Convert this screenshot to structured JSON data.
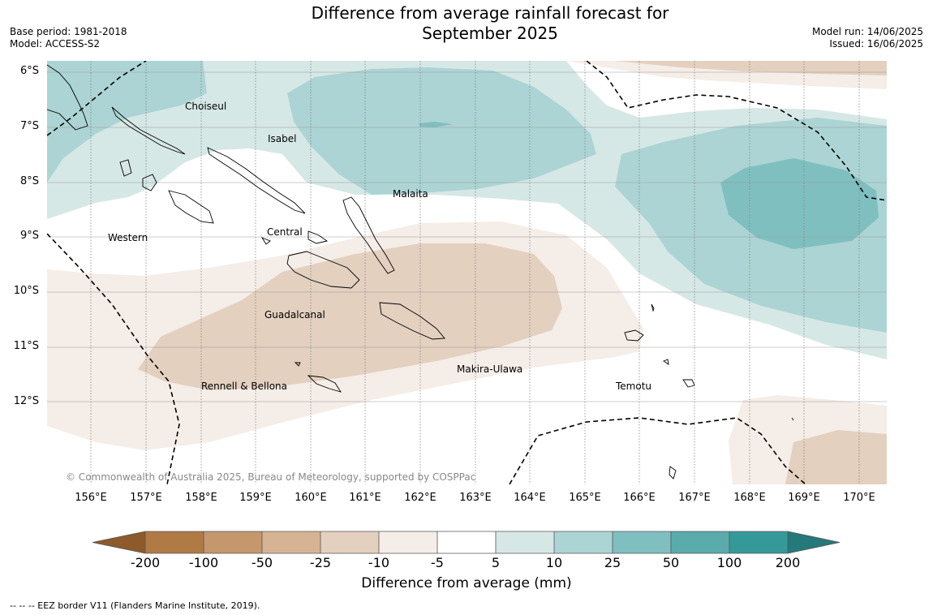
{
  "header": {
    "title_line1": "Difference from average rainfall forecast for",
    "title_line2": "September 2025",
    "base_period": "Base period: 1981-2018",
    "model": "Model: ACCESS-S2",
    "model_run": "Model run: 14/06/2025",
    "issued": "Issued: 16/06/2025"
  },
  "map": {
    "lat_labels": [
      "6°S",
      "7°S",
      "8°S",
      "9°S",
      "10°S",
      "11°S",
      "12°S"
    ],
    "lon_labels": [
      "156°E",
      "157°E",
      "158°E",
      "159°E",
      "160°E",
      "161°E",
      "162°E",
      "163°E",
      "164°E",
      "165°E",
      "166°E",
      "167°E",
      "168°E",
      "169°E",
      "170°E"
    ],
    "regions": {
      "choiseul": "Choiseul",
      "isabel": "Isabel",
      "malaita": "Malaita",
      "western": "Western",
      "central": "Central",
      "guadalcanal": "Guadalcanal",
      "makira": "Makira-Ulawa",
      "rennell": "Rennell & Bellona",
      "temotu": "Temotu"
    },
    "copyright": "© Commonwealth of Australia 2025, Bureau of Meteorology, supported by COSPPac"
  },
  "colorbar": {
    "ticks": [
      "-200",
      "-100",
      "-50",
      "-25",
      "-10",
      "-5",
      "5",
      "10",
      "25",
      "50",
      "100",
      "200"
    ],
    "colors": [
      "#8c5a2b",
      "#b07a45",
      "#c4976d",
      "#d6b493",
      "#e3d0bf",
      "#f5ede7",
      "#ffffff",
      "#d6e8e6",
      "#acd4d4",
      "#80bfbf",
      "#5aabab",
      "#35999a",
      "#25797a"
    ],
    "label": "Difference from average (mm)"
  },
  "footnote": "--  --  -- EEZ border V11 (Flanders Marine Institute, 2019)."
}
